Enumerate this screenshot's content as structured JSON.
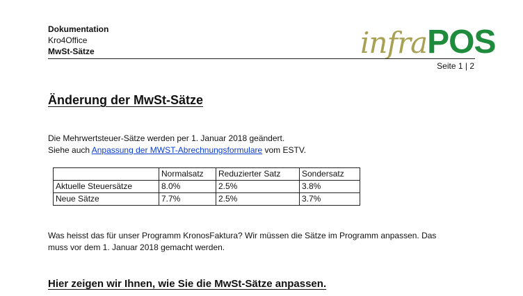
{
  "header": {
    "doc_type": "Dokumentation",
    "product": "Kro4Office",
    "topic": "MwSt-Sätze",
    "logo": {
      "part1": "infra",
      "part2": "POS",
      "part1_color": "#a8a154",
      "part2_color": "#1e8c3c"
    },
    "page_info": "Seite 1 | 2"
  },
  "title": "Änderung der MwSt-Sätze",
  "intro": {
    "line1": "Die Mehrwertsteuer-Sätze werden per 1. Januar 2018 geändert.",
    "line2_prefix": "Siehe auch ",
    "link_text": "Anpassung der MWST-Abrechnungsformulare",
    "line2_suffix": " vom ESTV.",
    "link_color": "#0a3ccf"
  },
  "table": {
    "columns": [
      "",
      "Normalsatz",
      "Reduzierter Satz",
      "Sondersatz"
    ],
    "rows": [
      [
        "Aktuelle Steuersätze",
        "8.0%",
        "2.5%",
        "3.8%"
      ],
      [
        "Neue Sätze",
        "7.7%",
        "2.5%",
        "3.7%"
      ]
    ]
  },
  "paragraph": {
    "line1": "Was heisst das für unser Programm KronosFaktura? Wir müssen die Sätze im Programm anpassen. Das",
    "line2": "muss vor dem 1. Januar 2018 gemacht werden."
  },
  "section_heading": "Hier zeigen wir Ihnen, wie Sie die MwSt-Sätze anpassen."
}
